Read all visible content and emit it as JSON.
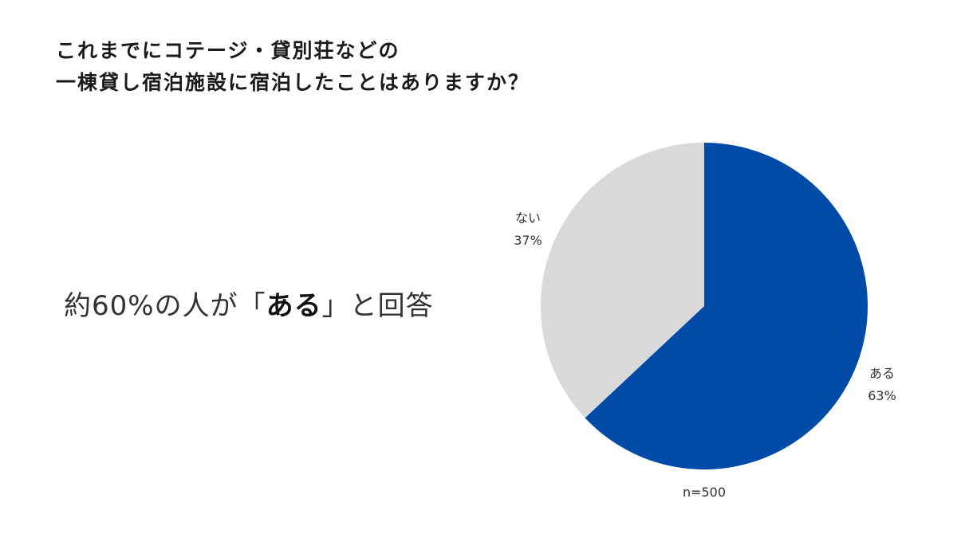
{
  "title": {
    "line1": "これまでにコテージ・貸別荘などの",
    "line2": "一棟貸し宿泊施設に宿泊したことはありますか？"
  },
  "summary": {
    "prefix": "約60%の人が",
    "open_bracket": "「",
    "emphasis": "ある",
    "close_bracket": "」",
    "suffix": "と回答"
  },
  "chart_data": {
    "type": "pie",
    "categories": [
      "ある",
      "ない"
    ],
    "values": [
      63,
      37
    ],
    "value_labels": [
      "63%",
      "37%"
    ],
    "colors": [
      "#004BA8",
      "#D9D9D9"
    ],
    "start_angle": "12 o'clock",
    "direction": "clockwise",
    "note": "n=500"
  }
}
